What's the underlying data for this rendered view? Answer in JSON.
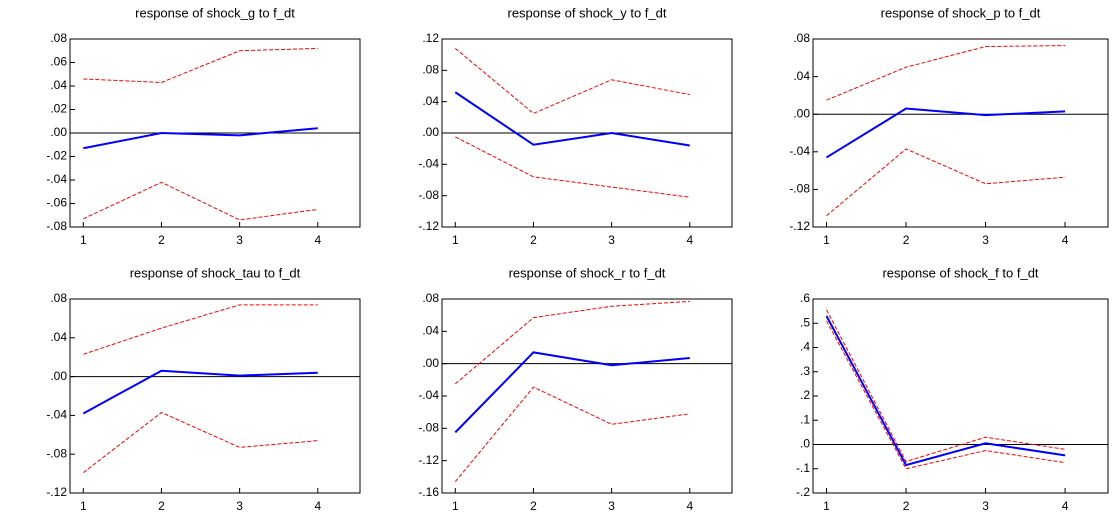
{
  "chart_data": [
    {
      "type": "line",
      "title": "response of shock_g to f_dt",
      "x": [
        1,
        2,
        3,
        4
      ],
      "xlim": [
        0.83,
        4.54
      ],
      "xticks": [
        1,
        2,
        3,
        4
      ],
      "ylim": [
        -0.08,
        0.08
      ],
      "yticks": [
        {
          "value": -0.08,
          "label": "-.08"
        },
        {
          "value": -0.06,
          "label": "-.06"
        },
        {
          "value": -0.04,
          "label": "-.04"
        },
        {
          "value": -0.02,
          "label": "-.02"
        },
        {
          "value": 0,
          "label": ".00"
        },
        {
          "value": 0.02,
          "label": ".02"
        },
        {
          "value": 0.04,
          "label": ".04"
        },
        {
          "value": 0.06,
          "label": ".06"
        },
        {
          "value": 0.08,
          "label": ".08"
        }
      ],
      "zero_line": true,
      "series": [
        {
          "color": "#0000ff",
          "dashed": false,
          "values": [
            -0.013,
            0.0,
            -0.002,
            0.004
          ]
        },
        {
          "color": "#ff0000",
          "dashed": true,
          "values": [
            0.046,
            0.043,
            0.07,
            0.072
          ]
        },
        {
          "color": "#ff0000",
          "dashed": true,
          "values": [
            -0.073,
            -0.042,
            -0.074,
            -0.065
          ]
        }
      ]
    },
    {
      "type": "line",
      "title": "response of shock_y to f_dt",
      "x": [
        1,
        2,
        3,
        4
      ],
      "xlim": [
        0.83,
        4.54
      ],
      "xticks": [
        1,
        2,
        3,
        4
      ],
      "ylim": [
        -0.12,
        0.12
      ],
      "yticks": [
        {
          "value": -0.12,
          "label": "-.12"
        },
        {
          "value": -0.08,
          "label": "-.08"
        },
        {
          "value": -0.04,
          "label": "-.04"
        },
        {
          "value": 0,
          "label": ".00"
        },
        {
          "value": 0.04,
          "label": ".04"
        },
        {
          "value": 0.08,
          "label": ".08"
        },
        {
          "value": 0.12,
          "label": ".12"
        }
      ],
      "zero_line": true,
      "series": [
        {
          "color": "#0000ff",
          "dashed": false,
          "values": [
            0.052,
            -0.015,
            0.0,
            -0.016
          ]
        },
        {
          "color": "#ff0000",
          "dashed": true,
          "values": [
            0.108,
            0.025,
            0.068,
            0.049
          ]
        },
        {
          "color": "#ff0000",
          "dashed": true,
          "values": [
            -0.005,
            -0.056,
            -0.069,
            -0.082
          ]
        }
      ]
    },
    {
      "type": "line",
      "title": "response of shock_p to f_dt",
      "x": [
        1,
        2,
        3,
        4
      ],
      "xlim": [
        0.83,
        4.54
      ],
      "xticks": [
        1,
        2,
        3,
        4
      ],
      "ylim": [
        -0.12,
        0.08
      ],
      "yticks": [
        {
          "value": -0.12,
          "label": "-.12"
        },
        {
          "value": -0.08,
          "label": "-.08"
        },
        {
          "value": -0.04,
          "label": "-.04"
        },
        {
          "value": 0,
          "label": ".00"
        },
        {
          "value": 0.04,
          "label": ".04"
        },
        {
          "value": 0.08,
          "label": ".08"
        }
      ],
      "zero_line": true,
      "series": [
        {
          "color": "#0000ff",
          "dashed": false,
          "values": [
            -0.046,
            0.006,
            -0.001,
            0.003
          ]
        },
        {
          "color": "#ff0000",
          "dashed": true,
          "values": [
            0.015,
            0.05,
            0.072,
            0.073
          ]
        },
        {
          "color": "#ff0000",
          "dashed": true,
          "values": [
            -0.108,
            -0.037,
            -0.074,
            -0.067
          ]
        }
      ]
    },
    {
      "type": "line",
      "title": "response of shock_tau to f_dt",
      "x": [
        1,
        2,
        3,
        4
      ],
      "xlim": [
        0.83,
        4.54
      ],
      "xticks": [
        1,
        2,
        3,
        4
      ],
      "ylim": [
        -0.12,
        0.08
      ],
      "yticks": [
        {
          "value": -0.12,
          "label": "-.12"
        },
        {
          "value": -0.08,
          "label": "-.08"
        },
        {
          "value": -0.04,
          "label": "-.04"
        },
        {
          "value": 0,
          "label": ".00"
        },
        {
          "value": 0.04,
          "label": ".04"
        },
        {
          "value": 0.08,
          "label": ".08"
        }
      ],
      "zero_line": true,
      "series": [
        {
          "color": "#0000ff",
          "dashed": false,
          "values": [
            -0.038,
            0.006,
            0.001,
            0.004
          ]
        },
        {
          "color": "#ff0000",
          "dashed": true,
          "values": [
            0.023,
            0.05,
            0.074,
            0.074
          ]
        },
        {
          "color": "#ff0000",
          "dashed": true,
          "values": [
            -0.099,
            -0.037,
            -0.073,
            -0.066
          ]
        }
      ]
    },
    {
      "type": "line",
      "title": "response of shock_r to f_dt",
      "x": [
        1,
        2,
        3,
        4
      ],
      "xlim": [
        0.83,
        4.54
      ],
      "xticks": [
        1,
        2,
        3,
        4
      ],
      "ylim": [
        -0.16,
        0.08
      ],
      "yticks": [
        {
          "value": -0.16,
          "label": "-.16"
        },
        {
          "value": -0.12,
          "label": "-.12"
        },
        {
          "value": -0.08,
          "label": "-.08"
        },
        {
          "value": -0.04,
          "label": "-.04"
        },
        {
          "value": 0,
          "label": ".00"
        },
        {
          "value": 0.04,
          "label": ".04"
        },
        {
          "value": 0.08,
          "label": ".08"
        }
      ],
      "zero_line": true,
      "series": [
        {
          "color": "#0000ff",
          "dashed": false,
          "values": [
            -0.085,
            0.014,
            -0.002,
            0.007
          ]
        },
        {
          "color": "#ff0000",
          "dashed": true,
          "values": [
            -0.025,
            0.057,
            0.071,
            0.077
          ]
        },
        {
          "color": "#ff0000",
          "dashed": true,
          "values": [
            -0.146,
            -0.029,
            -0.075,
            -0.062
          ]
        }
      ]
    },
    {
      "type": "line",
      "title": "response of shock_f to f_dt",
      "x": [
        1,
        2,
        3,
        4
      ],
      "xlim": [
        0.83,
        4.54
      ],
      "xticks": [
        1,
        2,
        3,
        4
      ],
      "ylim": [
        -0.2,
        0.6
      ],
      "yticks": [
        {
          "value": -0.2,
          "label": "-.2"
        },
        {
          "value": -0.1,
          "label": "-.1"
        },
        {
          "value": 0,
          "label": ".0"
        },
        {
          "value": 0.1,
          "label": ".1"
        },
        {
          "value": 0.2,
          "label": ".2"
        },
        {
          "value": 0.3,
          "label": ".3"
        },
        {
          "value": 0.4,
          "label": ".4"
        },
        {
          "value": 0.5,
          "label": ".5"
        },
        {
          "value": 0.6,
          "label": ".6"
        }
      ],
      "zero_line": true,
      "series": [
        {
          "color": "#0000ff",
          "dashed": false,
          "values": [
            0.53,
            -0.085,
            0.005,
            -0.045
          ]
        },
        {
          "color": "#ff0000",
          "dashed": true,
          "values": [
            0.555,
            -0.07,
            0.03,
            -0.02
          ]
        },
        {
          "color": "#ff0000",
          "dashed": true,
          "values": [
            0.51,
            -0.1,
            -0.025,
            -0.075
          ]
        }
      ]
    }
  ]
}
